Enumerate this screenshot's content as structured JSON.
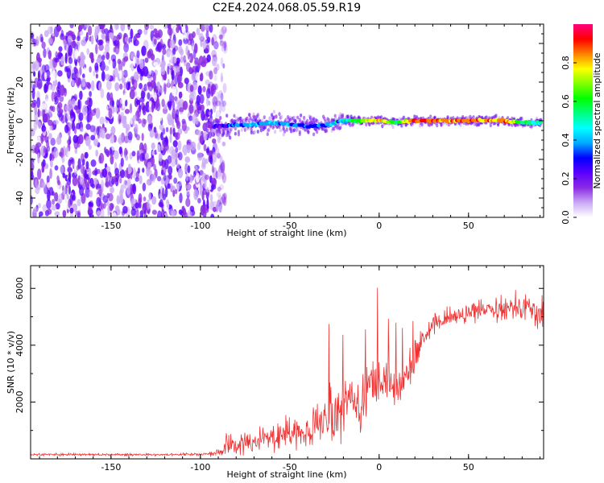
{
  "title": "C2E4.2024.068.05.59.R19",
  "chart_data": [
    {
      "type": "heatmap",
      "xlabel": "Height of straight line (km)",
      "ylabel": "Frequency (Hz)",
      "xlim": [
        -195,
        92
      ],
      "ylim": [
        -50,
        50
      ],
      "xticks": [
        -150,
        -100,
        -50,
        0,
        50
      ],
      "yticks": [
        -40,
        -20,
        0,
        20,
        40
      ],
      "noise_region": {
        "x": [
          -195,
          -92
        ],
        "y": [
          -50,
          50
        ],
        "amplitude": [
          0.05,
          0.3
        ]
      },
      "signal_ridge": [
        {
          "x": -95,
          "y": -3,
          "amplitude": 0.2
        },
        {
          "x": -80,
          "y": -2,
          "amplitude": 0.4
        },
        {
          "x": -70,
          "y": -2,
          "amplitude": 0.45
        },
        {
          "x": -60,
          "y": -1,
          "amplitude": 0.45
        },
        {
          "x": -50,
          "y": -2,
          "amplitude": 0.4
        },
        {
          "x": -40,
          "y": -3,
          "amplitude": 0.35
        },
        {
          "x": -30,
          "y": -2,
          "amplitude": 0.4
        },
        {
          "x": -20,
          "y": 0,
          "amplitude": 0.5
        },
        {
          "x": -10,
          "y": 0,
          "amplitude": 0.7
        },
        {
          "x": 0,
          "y": 0,
          "amplitude": 0.85
        },
        {
          "x": 10,
          "y": -1,
          "amplitude": 0.6
        },
        {
          "x": 20,
          "y": 0,
          "amplitude": 0.95
        },
        {
          "x": 30,
          "y": 0,
          "amplitude": 0.9
        },
        {
          "x": 40,
          "y": 0,
          "amplitude": 0.85
        },
        {
          "x": 50,
          "y": 0,
          "amplitude": 0.9
        },
        {
          "x": 60,
          "y": 0,
          "amplitude": 0.85
        },
        {
          "x": 70,
          "y": 0,
          "amplitude": 0.9
        },
        {
          "x": 80,
          "y": -1,
          "amplitude": 0.6
        },
        {
          "x": 90,
          "y": -1,
          "amplitude": 0.5
        }
      ],
      "colorbar": {
        "label": "Normalized spectral amplitude",
        "range": [
          0,
          1
        ],
        "ticks": [
          "0.0",
          "0.2",
          "0.4",
          "0.6",
          "0.8"
        ],
        "colors": [
          "#ffffff",
          "#c9a8f5",
          "#8a2be2",
          "#5a00ff",
          "#0000ff",
          "#00aaff",
          "#00ffff",
          "#00ff80",
          "#00ff00",
          "#80ff00",
          "#ffff00",
          "#ff8000",
          "#ff0000",
          "#ff0080"
        ]
      }
    },
    {
      "type": "line",
      "xlabel": "Height of straight line (km)",
      "ylabel": "SNR (10 * v/v)",
      "xlim": [
        -195,
        92
      ],
      "ylim": [
        0,
        6800
      ],
      "xticks": [
        -150,
        -100,
        -50,
        0,
        50
      ],
      "yticks": [
        2000,
        4000,
        6000
      ],
      "color": "#ee3333",
      "x": [
        -195,
        -150,
        -110,
        -95,
        -88,
        -85,
        -80,
        -75,
        -70,
        -65,
        -60,
        -55,
        -50,
        -45,
        -40,
        -35,
        -30,
        -25,
        -20,
        -15,
        -10,
        -5,
        0,
        5,
        10,
        15,
        20,
        25,
        30,
        40,
        50,
        60,
        70,
        80,
        90
      ],
      "y": [
        150,
        150,
        150,
        180,
        250,
        600,
        450,
        650,
        550,
        800,
        700,
        950,
        900,
        1000,
        800,
        1200,
        1300,
        1600,
        1900,
        2000,
        1800,
        2400,
        2900,
        2700,
        2500,
        2900,
        3600,
        4300,
        4700,
        5000,
        5100,
        5300,
        5300,
        5400,
        5100
      ],
      "noise": [
        60,
        60,
        60,
        100,
        250,
        550,
        450,
        500,
        450,
        600,
        550,
        700,
        700,
        800,
        700,
        1000,
        1200,
        1300,
        1400,
        1400,
        1300,
        1400,
        1300,
        1200,
        1100,
        1000,
        800,
        500,
        450,
        450,
        450,
        500,
        600,
        700,
        700
      ]
    }
  ]
}
